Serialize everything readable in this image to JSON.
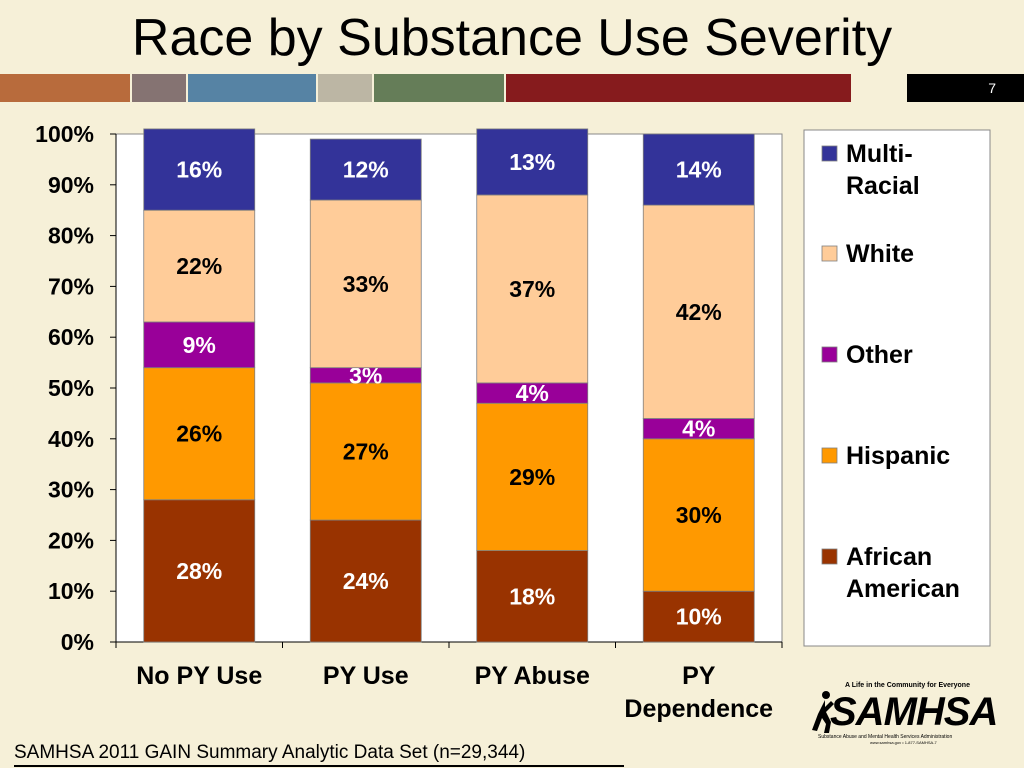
{
  "slide": {
    "title": "Race by Substance Use Severity",
    "number": "7",
    "source": "SAMHSA 2011 GAIN Summary Analytic Data Set (n=29,344)",
    "strip_colors": [
      "#b86b3c",
      "#857372",
      "#5683a4",
      "#bcb6a4",
      "#657d58",
      "#861b1d",
      "#f6f0d8",
      "#000000"
    ]
  },
  "logo": {
    "name": "SAMHSA",
    "tagline": "A Life in the Community for Everyone",
    "subtitle": "Substance Abuse and Mental Health Services Administration",
    "contact": "www.samhsa.gov • 1-877-SAMHSA-7"
  },
  "chart_data": {
    "type": "bar",
    "stacked": true,
    "percent": true,
    "categories": [
      "No PY Use",
      "PY Use",
      "PY Abuse",
      "PY Dependence"
    ],
    "category_lines": [
      [
        "No PY Use"
      ],
      [
        "PY Use"
      ],
      [
        "PY Abuse"
      ],
      [
        "PY",
        "Dependence"
      ]
    ],
    "series": [
      {
        "name": "African American",
        "values": [
          28,
          24,
          18,
          10
        ],
        "color": "#993300",
        "labels": [
          "28%",
          "24%",
          "18%",
          "10%"
        ],
        "label_color": "#ffffff"
      },
      {
        "name": "Hispanic",
        "values": [
          26,
          27,
          29,
          30
        ],
        "color": "#ff9900",
        "labels": [
          "26%",
          "27%",
          "29%",
          "30%"
        ],
        "label_color": "#000000"
      },
      {
        "name": "Other",
        "values": [
          9,
          3,
          4,
          4
        ],
        "color": "#990099",
        "labels": [
          "9%",
          "3%",
          "4%",
          "4%"
        ],
        "label_color": "#ffffff"
      },
      {
        "name": "White",
        "values": [
          22,
          33,
          37,
          42
        ],
        "color": "#ffcc99",
        "labels": [
          "22%",
          "33%",
          "37%",
          "42%"
        ],
        "label_color": "#000000"
      },
      {
        "name": "Multi-Racial",
        "values": [
          16,
          12,
          13,
          14
        ],
        "color": "#333399",
        "labels": [
          "16%",
          "12%",
          "13%",
          "14%"
        ],
        "label_color": "#ffffff"
      }
    ],
    "legend_lines": {
      "Multi-Racial": [
        "Multi-",
        "Racial"
      ],
      "White": [
        "White"
      ],
      "Other": [
        "Other"
      ],
      "Hispanic": [
        "Hispanic"
      ],
      "African American": [
        "African",
        "American"
      ]
    },
    "yticks": [
      "0%",
      "10%",
      "20%",
      "30%",
      "40%",
      "50%",
      "60%",
      "70%",
      "80%",
      "90%",
      "100%"
    ],
    "ylim": [
      0,
      100
    ],
    "legend_position": "right",
    "grid": false
  }
}
